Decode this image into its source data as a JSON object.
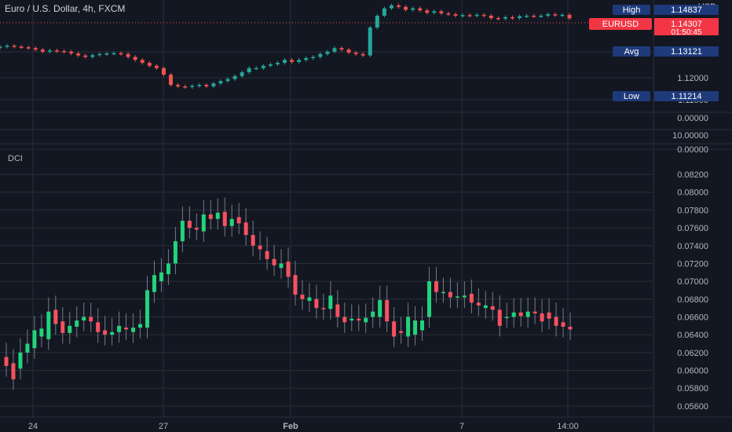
{
  "header": {
    "symbol_title": "Euro / U.S. Dollar, 4h, FXCM"
  },
  "lower_pane": {
    "label": "DCI"
  },
  "colors": {
    "up": "#26a69a",
    "down": "#ef5350",
    "dci_up": "#22d37a",
    "dci_down": "#f7525f",
    "background": "#131722",
    "grid": "#2a2e39",
    "badge_blue": "#1e3a7b"
  },
  "chart_data": [
    {
      "type": "candlestick",
      "title": "Euro / U.S. Dollar, 4h, FXCM",
      "currency": "USD",
      "price_axis_ticks": [
        "1.12000",
        "1.11000"
      ],
      "ylim": [
        1.108,
        1.148
      ],
      "badges": [
        {
          "label": "High",
          "value": "1.14837"
        },
        {
          "label": "EURUSD",
          "value": "1.14307",
          "countdown": "01:50:45"
        },
        {
          "label": "Avg",
          "value": "1.13121"
        },
        {
          "label": "Low",
          "value": "1.11214"
        }
      ],
      "closes": [
        1.1335,
        1.1338,
        1.1335,
        1.1333,
        1.133,
        1.1325,
        1.1318,
        1.1322,
        1.132,
        1.1318,
        1.1312,
        1.1305,
        1.13,
        1.1306,
        1.131,
        1.1312,
        1.1313,
        1.131,
        1.13,
        1.129,
        1.128,
        1.127,
        1.1262,
        1.124,
        1.1205,
        1.12,
        1.1198,
        1.1202,
        1.1205,
        1.12,
        1.121,
        1.1218,
        1.1225,
        1.1235,
        1.1248,
        1.1262,
        1.1262,
        1.127,
        1.1275,
        1.128,
        1.129,
        1.1283,
        1.129,
        1.1296,
        1.13,
        1.131,
        1.1318,
        1.133,
        1.1325,
        1.1315,
        1.131,
        1.1305,
        1.14,
        1.144,
        1.1465,
        1.1475,
        1.147,
        1.146,
        1.1465,
        1.1458,
        1.145,
        1.1455,
        1.1448,
        1.1445,
        1.144,
        1.1442,
        1.144,
        1.1443,
        1.144,
        1.1432,
        1.143,
        1.1435,
        1.1432,
        1.1438,
        1.144,
        1.1438,
        1.144,
        1.1445,
        1.1442,
        1.1443,
        1.1431
      ]
    },
    {
      "type": "bar",
      "title": "DCI",
      "y_ticks": [
        "0.08200",
        "0.08000",
        "0.07800",
        "0.07600",
        "0.07400",
        "0.07200",
        "0.07000",
        "0.06800",
        "0.06600",
        "0.06400",
        "0.06200",
        "0.06000",
        "0.05800",
        "0.05600"
      ],
      "extra_axis_labels": [
        "0.00000",
        "10.00000",
        "0.00000"
      ],
      "ylim": [
        0.0552,
        0.0835
      ],
      "candles": [
        [
          0.0615,
          0.0605
        ],
        [
          0.0608,
          0.059
        ],
        [
          0.0602,
          0.062
        ],
        [
          0.062,
          0.063
        ],
        [
          0.0625,
          0.0645
        ],
        [
          0.0638,
          0.0647
        ],
        [
          0.0635,
          0.0666
        ],
        [
          0.0668,
          0.0652
        ],
        [
          0.0655,
          0.0642
        ],
        [
          0.0642,
          0.065
        ],
        [
          0.0649,
          0.0656
        ],
        [
          0.0656,
          0.066
        ],
        [
          0.066,
          0.0655
        ],
        [
          0.0654,
          0.0643
        ],
        [
          0.0645,
          0.064
        ],
        [
          0.064,
          0.0643
        ],
        [
          0.0643,
          0.065
        ],
        [
          0.0648,
          0.0646
        ],
        [
          0.0643,
          0.0648
        ],
        [
          0.0648,
          0.0652
        ],
        [
          0.0648,
          0.069
        ],
        [
          0.0688,
          0.0707
        ],
        [
          0.07,
          0.071
        ],
        [
          0.0708,
          0.072
        ],
        [
          0.072,
          0.0745
        ],
        [
          0.0745,
          0.0768
        ],
        [
          0.0768,
          0.076
        ],
        [
          0.076,
          0.0758
        ],
        [
          0.0756,
          0.0775
        ],
        [
          0.0775,
          0.077
        ],
        [
          0.077,
          0.0777
        ],
        [
          0.0778,
          0.0762
        ],
        [
          0.0762,
          0.077
        ],
        [
          0.0772,
          0.0765
        ],
        [
          0.0766,
          0.0752
        ],
        [
          0.0752,
          0.074
        ],
        [
          0.074,
          0.0736
        ],
        [
          0.0734,
          0.0725
        ],
        [
          0.0725,
          0.0718
        ],
        [
          0.0715,
          0.072
        ],
        [
          0.0722,
          0.0705
        ],
        [
          0.0707,
          0.0685
        ],
        [
          0.0685,
          0.068
        ],
        [
          0.0678,
          0.0682
        ],
        [
          0.068,
          0.067
        ],
        [
          0.067,
          0.0669
        ],
        [
          0.0669,
          0.0684
        ],
        [
          0.0674,
          0.066
        ],
        [
          0.066,
          0.0654
        ],
        [
          0.0656,
          0.0658
        ],
        [
          0.0658,
          0.0656
        ],
        [
          0.0654,
          0.0659
        ],
        [
          0.066,
          0.0666
        ],
        [
          0.066,
          0.0679
        ],
        [
          0.0679,
          0.0655
        ],
        [
          0.0655,
          0.0638
        ],
        [
          0.0644,
          0.0642
        ],
        [
          0.0638,
          0.066
        ],
        [
          0.064,
          0.0656
        ],
        [
          0.0645,
          0.0656
        ],
        [
          0.066,
          0.07
        ],
        [
          0.07,
          0.0688
        ],
        [
          0.0688,
          0.0688
        ],
        [
          0.0688,
          0.0682
        ],
        [
          0.0682,
          0.0683
        ],
        [
          0.0682,
          0.0684
        ],
        [
          0.0686,
          0.0676
        ],
        [
          0.0676,
          0.0673
        ],
        [
          0.067,
          0.0673
        ],
        [
          0.0672,
          0.0668
        ],
        [
          0.0668,
          0.065
        ],
        [
          0.066,
          0.066
        ],
        [
          0.066,
          0.0665
        ],
        [
          0.0665,
          0.0661
        ],
        [
          0.066,
          0.0666
        ],
        [
          0.0666,
          0.0664
        ],
        [
          0.0664,
          0.0655
        ],
        [
          0.0665,
          0.0658
        ],
        [
          0.066,
          0.065
        ],
        [
          0.0654,
          0.0649
        ],
        [
          0.0649,
          0.0646
        ]
      ]
    }
  ],
  "x_axis": {
    "ticks": [
      "24",
      "27",
      "Feb",
      "7",
      "14:00"
    ]
  }
}
